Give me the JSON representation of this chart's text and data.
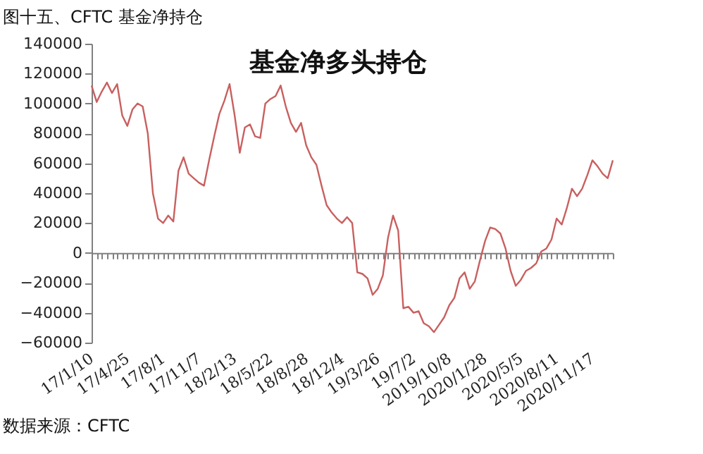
{
  "chart_data": {
    "type": "line",
    "title": "图十五、CFTC 基金净持仓",
    "subtitle": "基金净多头持仓",
    "annotations": [
      "数据来源：CFTC"
    ],
    "categories": [
      "17/1/10",
      null,
      null,
      null,
      null,
      null,
      null,
      "17/4/25",
      null,
      null,
      null,
      null,
      null,
      null,
      "17/8/1",
      null,
      null,
      null,
      null,
      null,
      null,
      "17/11/7",
      null,
      null,
      null,
      null,
      null,
      null,
      "18/2/13",
      null,
      null,
      null,
      null,
      null,
      null,
      "18/5/22",
      null,
      null,
      null,
      null,
      null,
      null,
      "18/8/28",
      null,
      null,
      null,
      null,
      null,
      null,
      "18/12/4",
      null,
      null,
      null,
      null,
      null,
      null,
      "19/3/26",
      null,
      null,
      null,
      null,
      null,
      null,
      "19/7/2",
      null,
      null,
      null,
      null,
      null,
      null,
      "2019/10/8",
      null,
      null,
      null,
      null,
      null,
      null,
      "2020/1/28",
      null,
      null,
      null,
      null,
      null,
      null,
      "2020/5/5",
      null,
      null,
      null,
      null,
      null,
      null,
      "2020/8/11",
      null,
      null,
      null,
      null,
      null,
      null,
      "2020/11/17",
      null,
      null,
      null,
      null
    ],
    "values": [
      112000,
      101000,
      108000,
      114000,
      107000,
      113000,
      92000,
      85000,
      96000,
      100000,
      98000,
      80000,
      40000,
      23000,
      20000,
      25000,
      21000,
      55000,
      64000,
      53000,
      50000,
      47000,
      45000,
      62000,
      78000,
      93000,
      102000,
      113000,
      92000,
      67000,
      84000,
      86000,
      78000,
      77000,
      100000,
      103000,
      105000,
      112000,
      98000,
      87000,
      81000,
      87000,
      72000,
      64000,
      59000,
      45000,
      32000,
      27000,
      23000,
      20000,
      24000,
      20000,
      -13000,
      -14000,
      -17000,
      -28000,
      -24000,
      -15000,
      10000,
      25000,
      15000,
      -37000,
      -36000,
      -40000,
      -39000,
      -47000,
      -49000,
      -53000,
      -48000,
      -43000,
      -35000,
      -30000,
      -17000,
      -13000,
      -24000,
      -19000,
      -5000,
      8000,
      17000,
      16000,
      13000,
      3000,
      -12000,
      -22000,
      -18000,
      -12000,
      -10000,
      -7000,
      1000,
      3000,
      9000,
      23000,
      19000,
      30000,
      43000,
      38000,
      43000,
      52000,
      62000,
      58000,
      53000,
      50000,
      62000
    ],
    "color": "#c8605f",
    "ylim": [
      -60000,
      140000
    ],
    "yticks": [
      -60000,
      -40000,
      -20000,
      0,
      20000,
      40000,
      60000,
      80000,
      100000,
      120000,
      140000
    ]
  }
}
